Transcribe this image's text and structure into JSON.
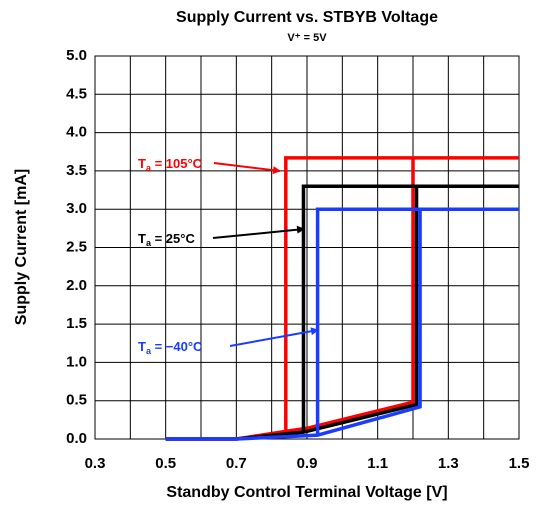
{
  "chart_data": {
    "type": "line",
    "title": "Supply Current vs. STBYB Voltage",
    "subtitle": "V⁺ = 5V",
    "x_label": "Standby Control Terminal Voltage [V]",
    "y_label": "Supply Current [mA]",
    "xlim": [
      0.3,
      1.5
    ],
    "ylim": [
      0,
      5
    ],
    "xticks": [
      0.3,
      0.5,
      0.7,
      0.9,
      1.1,
      1.3,
      1.5
    ],
    "xgrid": [
      0.3,
      0.4,
      0.5,
      0.6,
      0.7,
      0.8,
      0.9,
      1.0,
      1.1,
      1.2,
      1.3,
      1.4,
      1.5
    ],
    "yticks": [
      {
        "value": 0,
        "label": "0.0"
      },
      0.5,
      {
        "value": 1,
        "label": "1.0"
      },
      1.5,
      {
        "value": 2,
        "label": "2.0"
      },
      2.5,
      {
        "value": 3,
        "label": "3.0"
      },
      3.5,
      {
        "value": 4,
        "label": "4.0"
      },
      4.5,
      {
        "value": 5,
        "label": "5.0"
      }
    ],
    "grid": true,
    "series": [
      {
        "name": "105°C",
        "color": "#ff0000",
        "x": [
          0.5,
          0.7,
          0.84,
          0.9,
          1.2,
          1.2,
          1.5,
          null,
          0.84,
          0.84,
          1.2
        ],
        "values": [
          0,
          0,
          0.1,
          0.14,
          0.48,
          3.67,
          3.67,
          null,
          0.1,
          3.67,
          3.67
        ]
      },
      {
        "name": "25°C",
        "color": "#000000",
        "x": [
          0.5,
          0.7,
          0.89,
          0.9,
          1.21,
          1.21,
          1.5,
          null,
          0.89,
          0.89,
          1.21
        ],
        "values": [
          0,
          0,
          0.09,
          0.1,
          0.45,
          3.3,
          3.3,
          null,
          0.09,
          3.3,
          3.3
        ]
      },
      {
        "name": "−40°C",
        "color": "#1a3cff",
        "x": [
          0.5,
          0.7,
          0.93,
          1.22,
          1.22,
          1.5,
          null,
          0.93,
          0.93,
          1.22
        ],
        "values": [
          0,
          0,
          0.05,
          0.42,
          3.0,
          3.0,
          null,
          0.05,
          3.0,
          3.0
        ]
      }
    ],
    "annotations": [
      {
        "text": "T",
        "sub": "a",
        "rest": " = 105°C",
        "color": "#ff0000"
      },
      {
        "text": "T",
        "sub": "a",
        "rest": " = 25°C",
        "color": "#000000"
      },
      {
        "text": "T",
        "sub": "a",
        "rest": " = −40°C",
        "color": "#1a3cff"
      }
    ]
  }
}
